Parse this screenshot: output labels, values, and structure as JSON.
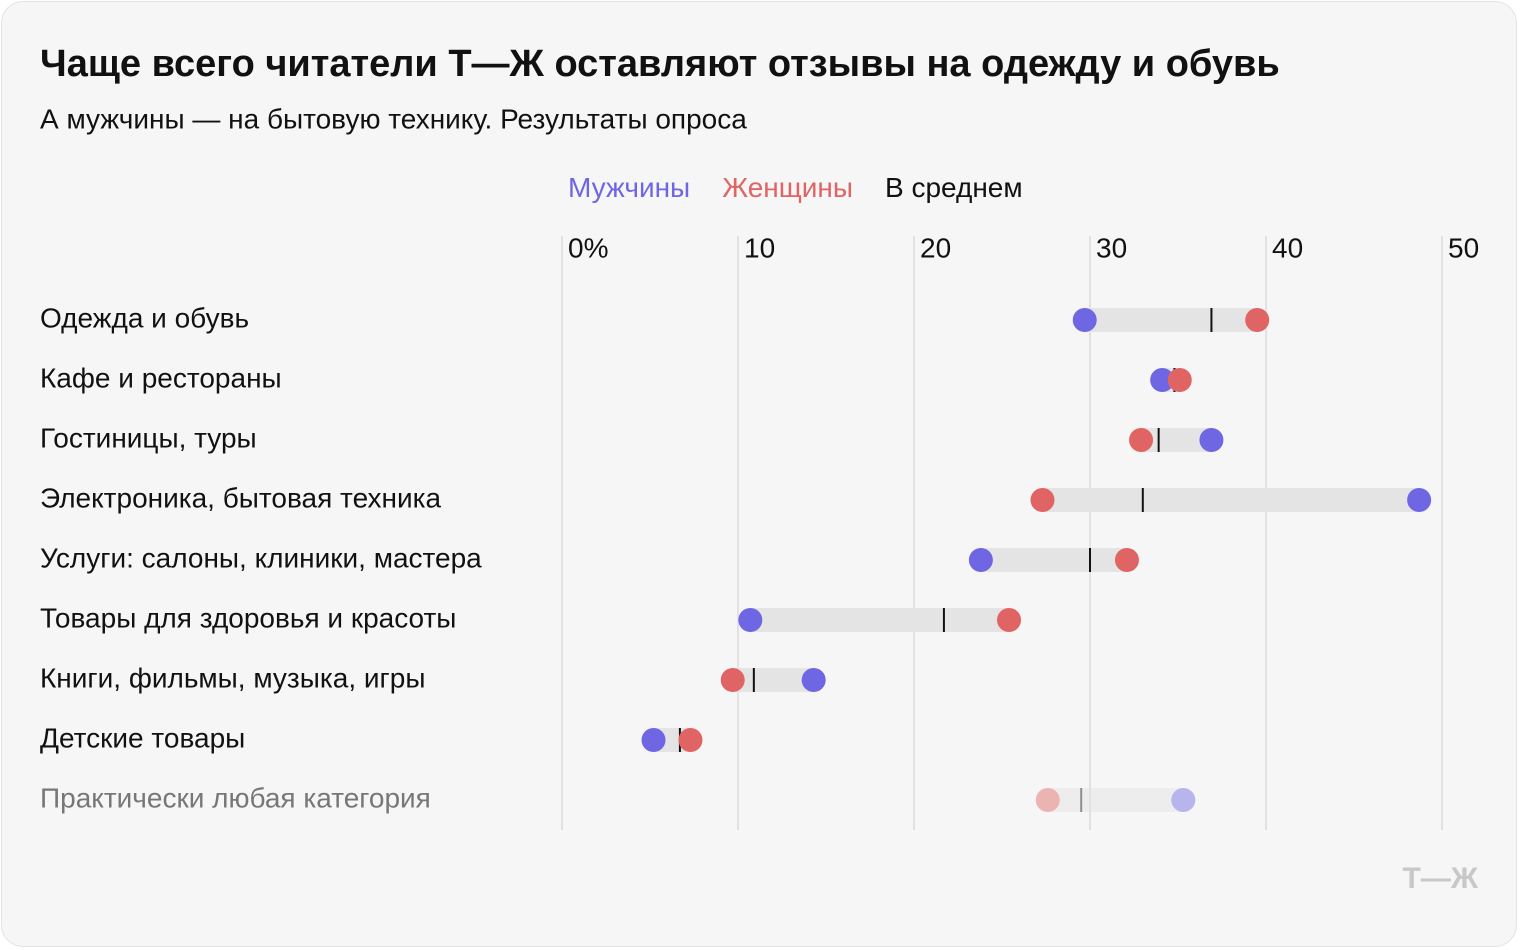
{
  "chart_data": {
    "type": "dumbbell",
    "title": "Чаще всего читатели Т—Ж оставляют отзывы на одежду и обувь",
    "subtitle": "А мужчины — на бытовую технику. Результаты опроса",
    "categories": [
      "Одежда и обувь",
      "Кафе и рестораны",
      "Гостиницы, туры",
      "Электроника, бытовая техника",
      "Услуги: салоны, клиники, мастера",
      "Товары для здоровья и красоты",
      "Книги, фильмы, музыка, игры",
      "Детские товары",
      "Практически любая категория"
    ],
    "muted_last": true,
    "series": [
      {
        "name": "Мужчины",
        "color": "#6f66e3",
        "values": [
          29.7,
          34.1,
          36.9,
          48.7,
          23.8,
          10.7,
          14.3,
          5.2,
          35.3
        ]
      },
      {
        "name": "Женщины",
        "color": "#e06464",
        "values": [
          39.5,
          35.1,
          32.9,
          27.3,
          32.1,
          25.4,
          9.7,
          7.3,
          27.6
        ]
      },
      {
        "name": "В среднем",
        "color": "#111111",
        "values": [
          36.9,
          34.8,
          33.9,
          33.0,
          30.0,
          21.7,
          10.9,
          6.7,
          29.5
        ]
      }
    ],
    "xlim": [
      0,
      50
    ],
    "xticks": [
      {
        "value": 0,
        "label": "0%"
      },
      10,
      20,
      30,
      40,
      50
    ],
    "grid": true
  },
  "logo": "Т—Ж"
}
